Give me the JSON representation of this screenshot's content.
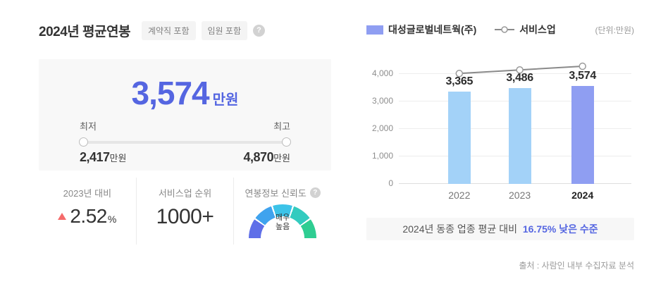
{
  "header": {
    "title": "2024년 평균연봉",
    "tags": [
      "계약직 포함",
      "임원 포함"
    ]
  },
  "icons": {
    "help": "?"
  },
  "summary": {
    "value": "3,574",
    "unit": "만원",
    "min_label": "최저",
    "max_label": "최고",
    "min_value": "2,417",
    "max_value": "4,870"
  },
  "stats": {
    "yoy": {
      "label": "2023년 대비",
      "value": "2.52",
      "unit": "%",
      "direction": "up"
    },
    "rank": {
      "label": "서비스업 순위",
      "value": "1000+"
    },
    "trust": {
      "label": "연봉정보 신뢰도",
      "value": "매우 높음",
      "value_lines": [
        "매우",
        "높음"
      ]
    }
  },
  "note": {
    "prefix": "2024년 동종 업종 평균 대비",
    "highlight": "16.75% 낮은 수준"
  },
  "source": "출처 : 사람인 내부 수집자료 분석",
  "colors": {
    "accent": "#5566e1",
    "bar": "#a3d2f8",
    "bar_highlight": "#8f9ef2",
    "line": "#8a8a8a",
    "up_red": "#f56b6b",
    "gauge": [
      "#5f6fe8",
      "#3fa3ee",
      "#3cc3e8",
      "#33cbbf",
      "#2fcd92"
    ]
  },
  "chart_data": {
    "type": "bar",
    "categories": [
      "2022",
      "2023",
      "2024"
    ],
    "series": [
      {
        "name": "대성글로벌네트웍(주)",
        "type": "bar",
        "values": [
          3365,
          3486,
          3574
        ]
      },
      {
        "name": "서비스업",
        "type": "line",
        "values": [
          4030,
          4160,
          4293
        ],
        "estimated": true
      }
    ],
    "title": "",
    "xlabel": "",
    "ylabel": "",
    "unit_label": "(단위:만원)",
    "ylim": [
      0,
      4500
    ],
    "yticks": [
      0,
      1000,
      2000,
      3000,
      4000
    ],
    "grid": true,
    "legend_position": "top",
    "highlight_category": "2024"
  }
}
